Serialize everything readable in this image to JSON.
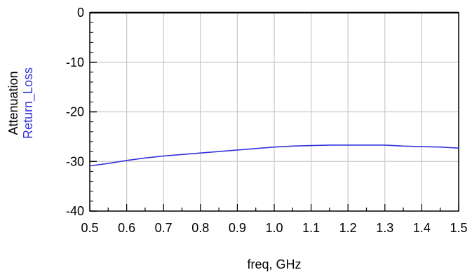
{
  "chart_data": {
    "type": "line",
    "xlabel": "freq, GHz",
    "ylabels": [
      "Attenuation",
      "Return_Loss"
    ],
    "xlim": [
      0.5,
      1.5
    ],
    "ylim": [
      -40,
      0
    ],
    "grid": true,
    "x_ticks": [
      "0.5",
      "0.6",
      "0.7",
      "0.8",
      "0.9",
      "1.0",
      "1.1",
      "1.2",
      "1.3",
      "1.4",
      "1.5"
    ],
    "y_ticks": [
      "0",
      "-10",
      "-20",
      "-30",
      "-40"
    ],
    "series": [
      {
        "name": "Attenuation",
        "color": "#000000",
        "x": [
          0.5,
          1.5
        ],
        "y": [
          0.0,
          0.0
        ]
      },
      {
        "name": "Return_Loss",
        "color": "#3333dd",
        "x": [
          0.5,
          0.55,
          0.6,
          0.65,
          0.7,
          0.75,
          0.8,
          0.85,
          0.9,
          0.95,
          1.0,
          1.05,
          1.1,
          1.15,
          1.2,
          1.25,
          1.3,
          1.35,
          1.4,
          1.45,
          1.5
        ],
        "y": [
          -30.9,
          -30.4,
          -29.8,
          -29.3,
          -28.9,
          -28.6,
          -28.3,
          -28.0,
          -27.7,
          -27.4,
          -27.1,
          -26.9,
          -26.8,
          -26.7,
          -26.7,
          -26.7,
          -26.7,
          -26.9,
          -27.0,
          -27.1,
          -27.3
        ]
      }
    ]
  }
}
